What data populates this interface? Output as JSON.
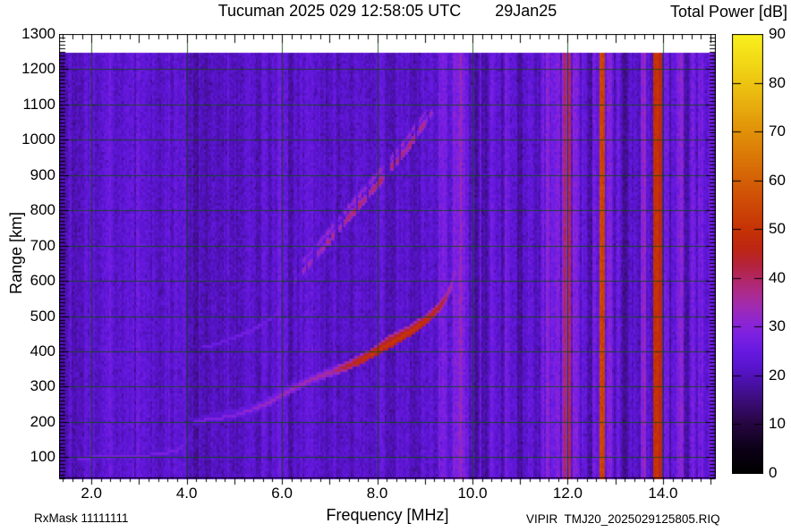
{
  "header": {
    "title": "Tucuman 2025 029 12:58:05 UTC",
    "date": "29Jan25"
  },
  "footer": {
    "rxmask": "RxMask 11111111",
    "filename": "VIPIR  TMJ20_2025029125805.RIQ"
  },
  "chart_data": {
    "type": "heatmap",
    "title": "Tucuman 2025 029 12:58:05 UTC",
    "date_label": "29Jan25",
    "xlabel": "Frequency [MHz]",
    "ylabel": "Range [km]",
    "colorbar_label": "Total Power [dB]",
    "x_range": [
      1.32,
      15.11
    ],
    "y_range": [
      40,
      1300
    ],
    "data_top_km": 1245,
    "x_tick_values": [
      2,
      4,
      6,
      8,
      10,
      12,
      14
    ],
    "x_tick_labels": [
      "2.0",
      "4.0",
      "6.0",
      "8.0",
      "10.0",
      "12.0",
      "14.0"
    ],
    "y_tick_values": [
      100,
      200,
      300,
      400,
      500,
      600,
      700,
      800,
      900,
      1000,
      1100,
      1200,
      1300
    ],
    "grid_x_values": [
      2,
      4,
      6,
      8,
      10,
      12,
      14
    ],
    "grid_y_values": [
      100,
      200,
      300,
      400,
      500,
      600,
      700,
      800,
      900,
      1000,
      1100,
      1200
    ],
    "x_minor_step": 0.2,
    "y_minor_step": 10,
    "colorbar_range": [
      0,
      90
    ],
    "colorbar_tick_values": [
      0,
      10,
      20,
      30,
      40,
      50,
      60,
      70,
      80,
      90
    ],
    "background_db": 22,
    "grid_color": "rgba(18,74,18,0.85)",
    "colormap_stops": [
      [
        0,
        "#000000"
      ],
      [
        5,
        "#0d0118"
      ],
      [
        10,
        "#260640"
      ],
      [
        15,
        "#3c0d7a"
      ],
      [
        19,
        "#4c11ad"
      ],
      [
        22,
        "#5a15cf"
      ],
      [
        25,
        "#681ae0"
      ],
      [
        28,
        "#7a20e2"
      ],
      [
        31,
        "#8d26d4"
      ],
      [
        34,
        "#a02bb4"
      ],
      [
        37,
        "#ad2b8d"
      ],
      [
        40,
        "#b22764"
      ],
      [
        43,
        "#b52338"
      ],
      [
        46,
        "#bd2714"
      ],
      [
        50,
        "#c63306"
      ],
      [
        56,
        "#cf4d06"
      ],
      [
        62,
        "#d76a07"
      ],
      [
        70,
        "#e19109"
      ],
      [
        78,
        "#ebbb10"
      ],
      [
        84,
        "#f2d816"
      ],
      [
        90,
        "#f9f01e"
      ]
    ],
    "rfi_bands": [
      [
        2.38,
        2.44,
        3
      ],
      [
        2.95,
        3.02,
        3
      ],
      [
        3.28,
        3.34,
        2
      ],
      [
        5.92,
        5.98,
        3
      ],
      [
        6.52,
        6.57,
        2
      ],
      [
        7.08,
        7.14,
        3
      ],
      [
        8.9,
        8.98,
        3
      ],
      [
        9.3,
        9.48,
        5
      ],
      [
        9.6,
        9.93,
        6
      ],
      [
        9.72,
        9.86,
        3
      ],
      [
        10.12,
        10.2,
        3
      ],
      [
        10.36,
        10.46,
        3
      ],
      [
        10.68,
        10.78,
        4
      ],
      [
        11.18,
        11.28,
        4
      ],
      [
        11.45,
        11.52,
        3
      ],
      [
        11.55,
        11.85,
        7
      ],
      [
        11.86,
        12.08,
        11
      ],
      [
        11.9,
        11.96,
        5
      ],
      [
        12.0,
        12.06,
        6
      ],
      [
        12.12,
        12.25,
        6
      ],
      [
        12.28,
        12.4,
        4
      ],
      [
        12.52,
        12.58,
        3
      ],
      [
        12.66,
        12.77,
        30
      ],
      [
        12.82,
        12.92,
        5
      ],
      [
        13.05,
        13.12,
        3
      ],
      [
        13.3,
        13.36,
        3
      ],
      [
        13.52,
        13.66,
        9
      ],
      [
        13.78,
        13.98,
        26
      ],
      [
        14.02,
        14.12,
        7
      ],
      [
        14.16,
        14.24,
        4
      ],
      [
        14.3,
        14.44,
        6
      ],
      [
        14.6,
        14.66,
        3
      ],
      [
        14.74,
        14.84,
        5
      ],
      [
        14.97,
        15.05,
        3
      ]
    ],
    "dark_bands": [
      [
        4.0,
        4.24,
        -3.5
      ],
      [
        2.52,
        2.68,
        -1.5
      ],
      [
        3.4,
        3.54,
        -1.5
      ],
      [
        5.04,
        5.14,
        -1.5
      ],
      [
        6.12,
        6.26,
        -2
      ],
      [
        10.02,
        10.34,
        -2.5
      ],
      [
        10.8,
        11.05,
        -2.5
      ],
      [
        11.3,
        11.44,
        -1.5
      ],
      [
        12.42,
        12.52,
        -2
      ],
      [
        13.15,
        13.28,
        -2
      ],
      [
        14.48,
        14.6,
        -2
      ],
      [
        1.32,
        1.45,
        -1
      ]
    ],
    "traces": [
      {
        "name": "E-layer",
        "style": "solid",
        "width_km": 9,
        "points": [
          [
            1.7,
            101,
            26
          ],
          [
            2.2,
            103,
            27
          ],
          [
            2.7,
            105,
            27
          ],
          [
            3.1,
            108,
            27
          ],
          [
            3.5,
            113,
            27
          ],
          [
            3.8,
            124,
            27
          ],
          [
            3.95,
            140,
            25
          ],
          [
            4.05,
            158,
            23
          ],
          [
            4.12,
            172,
            21
          ]
        ]
      },
      {
        "name": "F-layer-O",
        "style": "solid",
        "width_km": 11,
        "points": [
          [
            4.15,
            205,
            27
          ],
          [
            4.6,
            212,
            28
          ],
          [
            5.0,
            222,
            29
          ],
          [
            5.4,
            240,
            31
          ],
          [
            5.72,
            258,
            32
          ],
          [
            6.0,
            280,
            33
          ],
          [
            6.3,
            302,
            33
          ],
          [
            6.6,
            322,
            34
          ],
          [
            7.0,
            342,
            36
          ],
          [
            7.3,
            358,
            42
          ],
          [
            7.6,
            375,
            47
          ],
          [
            8.0,
            405,
            50
          ],
          [
            8.3,
            428,
            50
          ],
          [
            8.6,
            452,
            50
          ],
          [
            8.9,
            478,
            49
          ],
          [
            9.1,
            500,
            47
          ],
          [
            9.3,
            528,
            43
          ],
          [
            9.45,
            558,
            39
          ],
          [
            9.57,
            595,
            34
          ],
          [
            9.65,
            635,
            30
          ],
          [
            9.71,
            672,
            27
          ]
        ]
      },
      {
        "name": "F-layer-X",
        "style": "solid",
        "width_km": 9,
        "points": [
          [
            4.3,
            220,
            22
          ],
          [
            4.8,
            230,
            23
          ],
          [
            5.2,
            242,
            24
          ],
          [
            5.6,
            260,
            25
          ],
          [
            6.0,
            295,
            26
          ],
          [
            6.4,
            318,
            27
          ],
          [
            6.8,
            338,
            28
          ],
          [
            7.2,
            355,
            33
          ],
          [
            7.5,
            372,
            38
          ],
          [
            7.9,
            402,
            42
          ],
          [
            8.3,
            440,
            43
          ],
          [
            8.7,
            468,
            42
          ],
          [
            9.0,
            495,
            40
          ],
          [
            9.2,
            518,
            37
          ],
          [
            9.4,
            548,
            33
          ],
          [
            9.55,
            582,
            30
          ],
          [
            9.67,
            628,
            27
          ],
          [
            9.75,
            668,
            25
          ]
        ]
      },
      {
        "name": "second-hop-O",
        "style": "dotted",
        "width_km": 13,
        "points": [
          [
            6.25,
            600,
            27
          ],
          [
            6.6,
            655,
            29
          ],
          [
            7.0,
            718,
            31
          ],
          [
            7.4,
            782,
            33
          ],
          [
            7.8,
            845,
            35
          ],
          [
            8.2,
            908,
            35
          ],
          [
            8.55,
            965,
            34
          ],
          [
            8.85,
            1020,
            31
          ],
          [
            9.1,
            1072,
            29
          ],
          [
            9.28,
            1115,
            26
          ]
        ]
      },
      {
        "name": "second-hop-X",
        "style": "dotted",
        "width_km": 11,
        "points": [
          [
            6.25,
            628,
            23
          ],
          [
            6.6,
            683,
            25
          ],
          [
            7.0,
            746,
            26
          ],
          [
            7.4,
            810,
            27
          ],
          [
            7.8,
            873,
            28
          ],
          [
            8.2,
            936,
            28
          ],
          [
            8.55,
            993,
            27
          ],
          [
            8.85,
            1048,
            25
          ],
          [
            9.1,
            1100,
            23
          ]
        ]
      },
      {
        "name": "second-hop-low",
        "style": "solid",
        "width_km": 10,
        "points": [
          [
            4.35,
            415,
            25
          ],
          [
            4.75,
            430,
            25
          ],
          [
            5.15,
            450,
            26
          ],
          [
            5.55,
            478,
            26
          ],
          [
            5.9,
            510,
            25
          ]
        ]
      }
    ]
  }
}
